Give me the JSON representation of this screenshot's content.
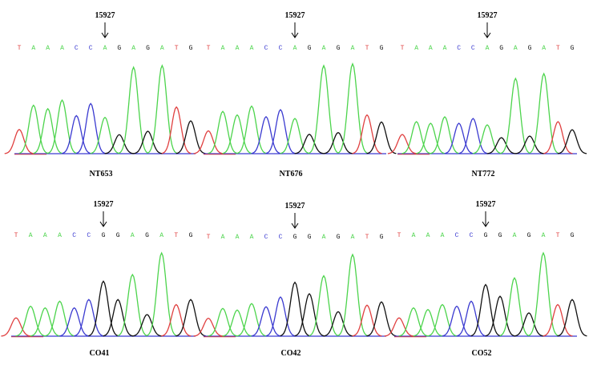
{
  "colors": {
    "A": "#4cd44c",
    "C": "#3a3ad0",
    "G": "#111111",
    "T": "#e04040",
    "baseline_red": "#e04040",
    "baseline_blue": "#3a3ad0"
  },
  "panels": [
    {
      "id": "NT653",
      "sample_label": "NT653",
      "position_label": "15927",
      "bases": [
        "T",
        "A",
        "A",
        "A",
        "C",
        "C",
        "A",
        "G",
        "A",
        "G",
        "A",
        "T",
        "G"
      ],
      "marked_index": 6,
      "peaks": [
        {
          "base": "T",
          "height": 0.28
        },
        {
          "base": "A",
          "height": 0.56
        },
        {
          "base": "A",
          "height": 0.52
        },
        {
          "base": "A",
          "height": 0.62
        },
        {
          "base": "C",
          "height": 0.44
        },
        {
          "base": "C",
          "height": 0.58
        },
        {
          "base": "A",
          "height": 0.42
        },
        {
          "base": "G",
          "height": 0.22
        },
        {
          "base": "A",
          "height": 1.0
        },
        {
          "base": "G",
          "height": 0.26
        },
        {
          "base": "A",
          "height": 1.02
        },
        {
          "base": "T",
          "height": 0.54
        },
        {
          "base": "G",
          "height": 0.38
        }
      ]
    },
    {
      "id": "NT676",
      "sample_label": "NT676",
      "position_label": "15927",
      "bases": [
        "T",
        "A",
        "A",
        "A",
        "C",
        "C",
        "A",
        "G",
        "A",
        "G",
        "A",
        "T",
        "G"
      ],
      "marked_index": 6,
      "peaks": [
        {
          "base": "T",
          "height": 0.26
        },
        {
          "base": "A",
          "height": 0.48
        },
        {
          "base": "A",
          "height": 0.44
        },
        {
          "base": "A",
          "height": 0.54
        },
        {
          "base": "C",
          "height": 0.42
        },
        {
          "base": "C",
          "height": 0.5
        },
        {
          "base": "A",
          "height": 0.4
        },
        {
          "base": "G",
          "height": 0.22
        },
        {
          "base": "A",
          "height": 1.0
        },
        {
          "base": "G",
          "height": 0.24
        },
        {
          "base": "A",
          "height": 1.02
        },
        {
          "base": "T",
          "height": 0.44
        },
        {
          "base": "G",
          "height": 0.36
        }
      ]
    },
    {
      "id": "NT772",
      "sample_label": "NT772",
      "position_label": "15927",
      "bases": [
        "T",
        "A",
        "A",
        "A",
        "C",
        "C",
        "A",
        "G",
        "A",
        "G",
        "A",
        "T",
        "G"
      ],
      "marked_index": 6,
      "peaks": [
        {
          "base": "T",
          "height": 0.24
        },
        {
          "base": "A",
          "height": 0.4
        },
        {
          "base": "A",
          "height": 0.38
        },
        {
          "base": "A",
          "height": 0.46
        },
        {
          "base": "C",
          "height": 0.38
        },
        {
          "base": "C",
          "height": 0.44
        },
        {
          "base": "A",
          "height": 0.36
        },
        {
          "base": "G",
          "height": 0.2
        },
        {
          "base": "A",
          "height": 0.94
        },
        {
          "base": "G",
          "height": 0.22
        },
        {
          "base": "A",
          "height": 1.0
        },
        {
          "base": "T",
          "height": 0.4
        },
        {
          "base": "G",
          "height": 0.3
        }
      ]
    },
    {
      "id": "CO41",
      "sample_label": "CO41",
      "position_label": "15927",
      "bases": [
        "T",
        "A",
        "A",
        "A",
        "C",
        "C",
        "G",
        "G",
        "A",
        "G",
        "A",
        "T",
        "G"
      ],
      "marked_index": 6,
      "peaks": [
        {
          "base": "T",
          "height": 0.22
        },
        {
          "base": "A",
          "height": 0.36
        },
        {
          "base": "A",
          "height": 0.34
        },
        {
          "base": "A",
          "height": 0.42
        },
        {
          "base": "C",
          "height": 0.34
        },
        {
          "base": "C",
          "height": 0.44
        },
        {
          "base": "G",
          "height": 0.66
        },
        {
          "base": "G",
          "height": 0.44
        },
        {
          "base": "A",
          "height": 0.74
        },
        {
          "base": "G",
          "height": 0.26
        },
        {
          "base": "A",
          "height": 1.0
        },
        {
          "base": "T",
          "height": 0.38
        },
        {
          "base": "G",
          "height": 0.44
        }
      ]
    },
    {
      "id": "CO42",
      "sample_label": "CO42",
      "position_label": "15927",
      "bases": [
        "T",
        "A",
        "A",
        "A",
        "C",
        "C",
        "G",
        "G",
        "A",
        "G",
        "A",
        "T",
        "G"
      ],
      "marked_index": 6,
      "peaks": [
        {
          "base": "T",
          "height": 0.22
        },
        {
          "base": "A",
          "height": 0.34
        },
        {
          "base": "A",
          "height": 0.32
        },
        {
          "base": "A",
          "height": 0.4
        },
        {
          "base": "C",
          "height": 0.36
        },
        {
          "base": "C",
          "height": 0.48
        },
        {
          "base": "G",
          "height": 0.66
        },
        {
          "base": "G",
          "height": 0.52
        },
        {
          "base": "A",
          "height": 0.74
        },
        {
          "base": "G",
          "height": 0.3
        },
        {
          "base": "A",
          "height": 1.0
        },
        {
          "base": "T",
          "height": 0.38
        },
        {
          "base": "G",
          "height": 0.42
        }
      ]
    },
    {
      "id": "CO52",
      "sample_label": "CO52",
      "position_label": "15927",
      "bases": [
        "T",
        "A",
        "A",
        "A",
        "C",
        "C",
        "G",
        "G",
        "A",
        "G",
        "A",
        "T",
        "G"
      ],
      "marked_index": 6,
      "peaks": [
        {
          "base": "T",
          "height": 0.22
        },
        {
          "base": "A",
          "height": 0.34
        },
        {
          "base": "A",
          "height": 0.32
        },
        {
          "base": "A",
          "height": 0.38
        },
        {
          "base": "C",
          "height": 0.36
        },
        {
          "base": "C",
          "height": 0.42
        },
        {
          "base": "G",
          "height": 0.62
        },
        {
          "base": "G",
          "height": 0.48
        },
        {
          "base": "A",
          "height": 0.7
        },
        {
          "base": "G",
          "height": 0.28
        },
        {
          "base": "A",
          "height": 1.0
        },
        {
          "base": "T",
          "height": 0.38
        },
        {
          "base": "G",
          "height": 0.44
        }
      ]
    }
  ]
}
